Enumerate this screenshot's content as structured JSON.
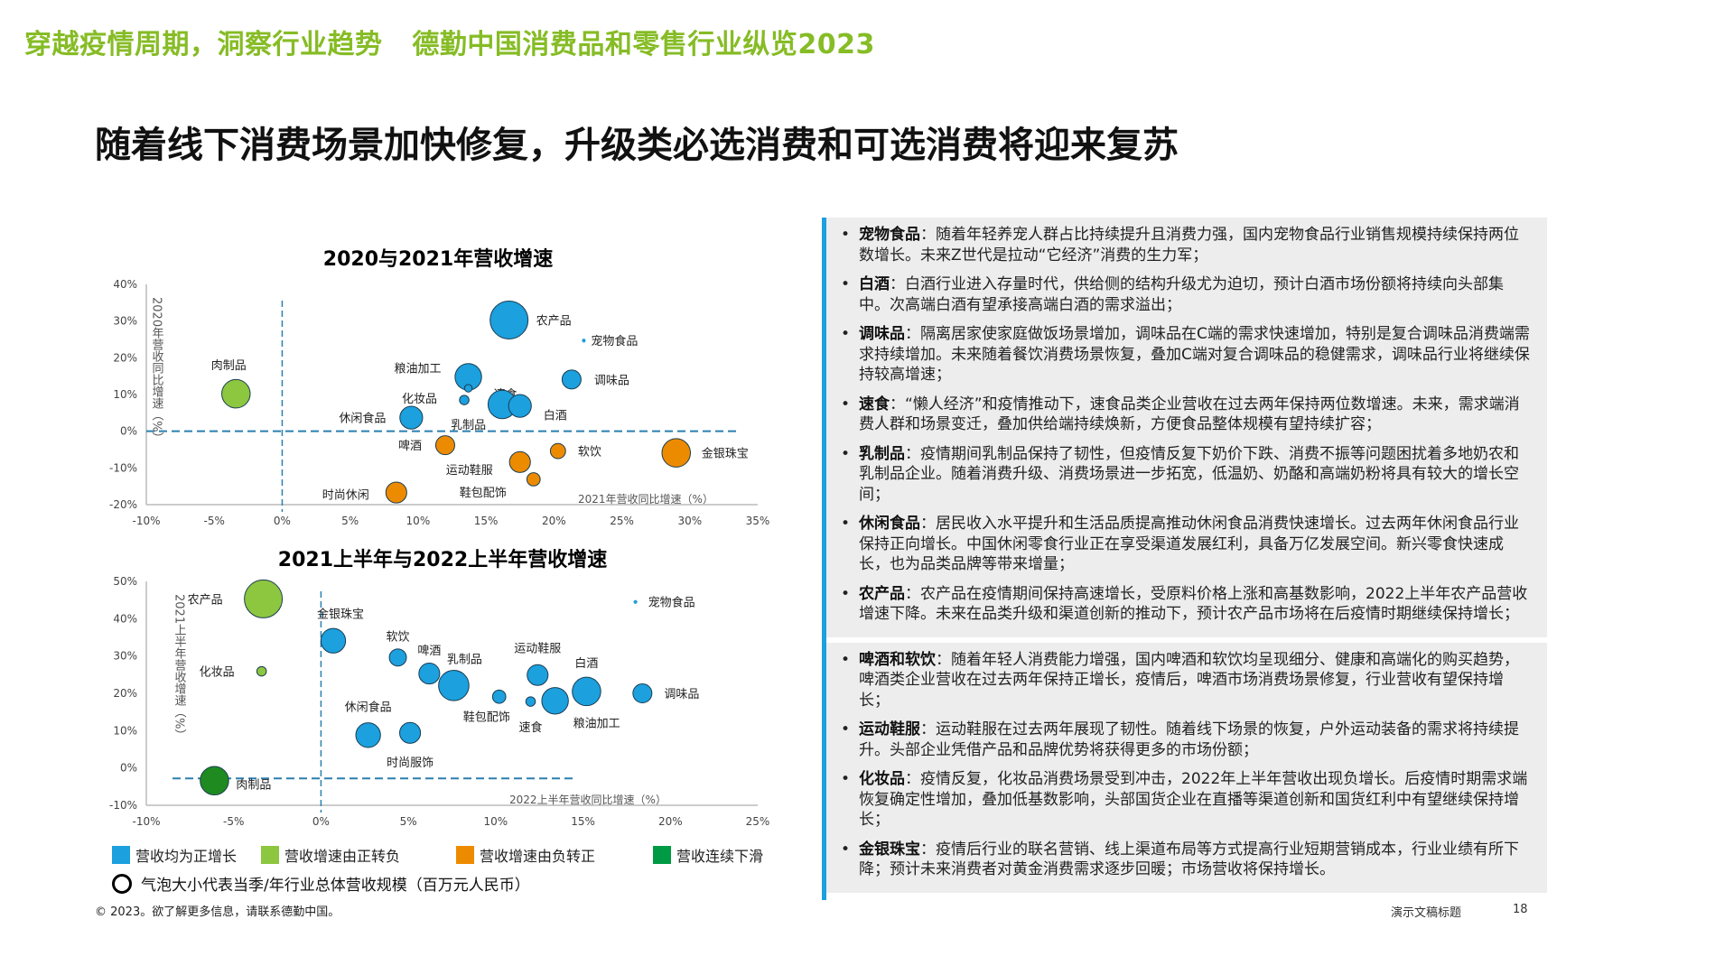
{
  "header": {
    "text": "穿越疫情周期，洞察行业趋势   德勤中国消费品和零售行业纵览2023"
  },
  "title": "随着线下消费场景加快修复，升级类必选消费和可选消费将迎来复苏",
  "colors": {
    "positive": "#1CA0DE",
    "pos_to_neg": "#8DC63F",
    "neg_to_pos": "#ED8B00",
    "decline": "#1F8A1F",
    "legend_decline": "#009A44",
    "accent": "#86BC25"
  },
  "chart_data": [
    {
      "type": "scatter",
      "title": "2020与2021年营收增速",
      "xlabel": "2021年营收同比增速（%）",
      "ylabel": "2020年营收同比增速（%）",
      "xlim": [
        -10,
        35
      ],
      "ylim": [
        -20,
        40
      ],
      "xticks": [
        "-10%",
        "-5%",
        "0%",
        "5%",
        "10%",
        "15%",
        "20%",
        "25%",
        "30%",
        "35%"
      ],
      "yticks": [
        "40%",
        "30%",
        "20%",
        "10%",
        "0%",
        "-10%",
        "-20%"
      ],
      "points": [
        {
          "label": "农产品",
          "x": 16.7,
          "y": 30.3,
          "size": 10,
          "group": "positive"
        },
        {
          "label": "宠物食品",
          "x": 22.2,
          "y": 24.7,
          "size": 1,
          "group": "positive"
        },
        {
          "label": "粮油加工",
          "x": 13.7,
          "y": 14.8,
          "size": 7,
          "group": "positive"
        },
        {
          "label": "速食",
          "x": 13.7,
          "y": 11.7,
          "size": 2,
          "group": "positive"
        },
        {
          "label": "化妆品",
          "x": 13.4,
          "y": 8.5,
          "size": 2.5,
          "group": "positive"
        },
        {
          "label": "调味品",
          "x": 21.3,
          "y": 14.1,
          "size": 5,
          "group": "positive"
        },
        {
          "label": "乳制品",
          "x": 16.2,
          "y": 7.3,
          "size": 7.5,
          "group": "positive"
        },
        {
          "label": "白酒",
          "x": 17.5,
          "y": 6.9,
          "size": 6,
          "group": "positive"
        },
        {
          "label": "肉制品",
          "x": -3.4,
          "y": 10.2,
          "size": 7.5,
          "group": "pos_to_neg"
        },
        {
          "label": "休闲食品",
          "x": 9.5,
          "y": 3.7,
          "size": 6,
          "group": "positive"
        },
        {
          "label": "啤酒",
          "x": 12.0,
          "y": -3.8,
          "size": 5,
          "group": "neg_to_pos"
        },
        {
          "label": "软饮",
          "x": 20.3,
          "y": -5.4,
          "size": 4,
          "group": "neg_to_pos"
        },
        {
          "label": "金银珠宝",
          "x": 29.0,
          "y": -5.9,
          "size": 7.5,
          "group": "neg_to_pos"
        },
        {
          "label": "运动鞋服",
          "x": 17.5,
          "y": -8.4,
          "size": 5.5,
          "group": "neg_to_pos"
        },
        {
          "label": "鞋包配饰",
          "x": 18.5,
          "y": -13.1,
          "size": 3.5,
          "group": "neg_to_pos"
        },
        {
          "label": "时尚休闲",
          "x": 8.4,
          "y": -16.7,
          "size": 5.5,
          "group": "neg_to_pos"
        }
      ],
      "reference_lines": {
        "x": 0,
        "y": 0
      }
    },
    {
      "type": "scatter",
      "title": "2021上半年与2022上半年营收增速",
      "xlabel": "2022上半年营收同比增速（%）",
      "ylabel": "2021上半年营收增速（%）",
      "xlim": [
        -10,
        25
      ],
      "ylim": [
        -10,
        50
      ],
      "xticks": [
        "-10%",
        "-5%",
        "0%",
        "5%",
        "10%",
        "15%",
        "20%",
        "25%"
      ],
      "yticks": [
        "50%",
        "40%",
        "30%",
        "20%",
        "10%",
        "0%",
        "-10%"
      ],
      "points": [
        {
          "label": "农产品",
          "x": -3.3,
          "y": 45.3,
          "size": 10,
          "group": "pos_to_neg"
        },
        {
          "label": "宠物食品",
          "x": 18.0,
          "y": 44.5,
          "size": 1,
          "group": "positive"
        },
        {
          "label": "金银珠宝",
          "x": 0.7,
          "y": 34.1,
          "size": 6.5,
          "group": "positive"
        },
        {
          "label": "软饮",
          "x": 4.4,
          "y": 29.6,
          "size": 4.5,
          "group": "positive"
        },
        {
          "label": "化妆品",
          "x": -3.4,
          "y": 25.9,
          "size": 2.5,
          "group": "pos_to_neg"
        },
        {
          "label": "啤酒",
          "x": 6.2,
          "y": 25.3,
          "size": 5.5,
          "group": "positive"
        },
        {
          "label": "乳制品",
          "x": 7.6,
          "y": 22.1,
          "size": 8,
          "group": "positive"
        },
        {
          "label": "运动鞋服",
          "x": 12.4,
          "y": 24.9,
          "size": 5.5,
          "group": "positive"
        },
        {
          "label": "白酒",
          "x": 15.2,
          "y": 20.5,
          "size": 7.5,
          "group": "positive"
        },
        {
          "label": "调味品",
          "x": 18.4,
          "y": 20.0,
          "size": 5,
          "group": "positive"
        },
        {
          "label": "鞋包配饰",
          "x": 10.2,
          "y": 19.1,
          "size": 3.5,
          "group": "positive"
        },
        {
          "label": "速食",
          "x": 12.0,
          "y": 17.8,
          "size": 2.5,
          "group": "positive"
        },
        {
          "label": "粮油加工",
          "x": 13.4,
          "y": 18.0,
          "size": 7,
          "group": "positive"
        },
        {
          "label": "休闲食品",
          "x": 2.7,
          "y": 8.8,
          "size": 6.5,
          "group": "positive"
        },
        {
          "label": "时尚服饰",
          "x": 5.1,
          "y": 9.4,
          "size": 5.5,
          "group": "positive"
        },
        {
          "label": "肉制品",
          "x": -6.1,
          "y": -3.4,
          "size": 7.5,
          "group": "decline"
        }
      ],
      "reference_lines": {
        "x": 0,
        "y": -2.8
      }
    }
  ],
  "legend": {
    "items": [
      {
        "label": "营收均为正增长",
        "color": "#1CA0DE"
      },
      {
        "label": "营收增速由正转负",
        "color": "#8DC63F"
      },
      {
        "label": "营收增速由负转正",
        "color": "#ED8B00"
      },
      {
        "label": "营收连续下滑",
        "color": "#009A44"
      }
    ],
    "bubble_note": "气泡大小代表当季/年行业总体营收规模（百万元人民币）"
  },
  "panel": {
    "group1": [
      {
        "term": "宠物食品",
        "text": "：随着年轻养宠人群占比持续提升且消费力强，国内宠物食品行业销售规模持续保持两位数增长。未来Z世代是拉动“它经济”消费的生力军；"
      },
      {
        "term": "白酒",
        "text": "：白酒行业进入存量时代，供给侧的结构升级尤为迫切，预计白酒市场份额将持续向头部集中。次高端白酒有望承接高端白酒的需求溢出；"
      },
      {
        "term": "调味品",
        "text": "：隔离居家使家庭做饭场景增加，调味品在C端的需求快速增加，特别是复合调味品消费端需求持续增加。未来随着餐饮消费场景恢复，叠加C端对复合调味品的稳健需求，调味品行业将继续保持较高增速；"
      },
      {
        "term": "速食",
        "text": "：“懒人经济”和疫情推动下，速食品类企业营收在过去两年保持两位数增速。未来，需求端消费人群和场景变迁，叠加供给端持续焕新，方便食品整体规模有望持续扩容；"
      },
      {
        "term": "乳制品",
        "text": "：疫情期间乳制品保持了韧性，但疫情反复下奶价下跌、消费不振等问题困扰着多地奶农和乳制品企业。随着消费升级、消费场景进一步拓宽，低温奶、奶酪和高端奶粉将具有较大的增长空间；"
      },
      {
        "term": "休闲食品",
        "text": "：居民收入水平提升和生活品质提高推动休闲食品消费快速增长。过去两年休闲食品行业保持正向增长。中国休闲零食行业正在享受渠道发展红利，具备万亿发展空间。新兴零食快速成长，也为品类品牌等带来增量；"
      },
      {
        "term": "农产品",
        "text": "：农产品在疫情期间保持高速增长，受原料价格上涨和高基数影响，2022上半年农产品营收增速下降。未来在品类升级和渠道创新的推动下，预计农产品市场将在后疫情时期继续保持增长；"
      }
    ],
    "group2": [
      {
        "term": "啤酒和软饮",
        "text": "：随着年轻人消费能力增强，国内啤酒和软饮均呈现细分、健康和高端化的购买趋势，啤酒类企业营收在过去两年保持正增长，疫情后，啤酒市场消费场景修复，行业营收有望保持增长；"
      },
      {
        "term": "运动鞋服",
        "text": "：运动鞋服在过去两年展现了韧性。随着线下场景的恢复，户外运动装备的需求将持续提升。头部企业凭借产品和品牌优势将获得更多的市场份额；"
      },
      {
        "term": "化妆品",
        "text": "：疫情反复，化妆品消费场景受到冲击，2022年上半年营收出现负增长。后疫情时期需求端恢复确定性增加，叠加低基数影响，头部国货企业在直播等渠道创新和国货红利中有望继续保持增长；"
      },
      {
        "term": "金银珠宝",
        "text": "：疫情后行业的联名营销、线上渠道布局等方式提高行业短期营销成本，行业业绩有所下降；预计未来消费者对黄金消费需求逐步回暖；市场营收将保持增长。"
      }
    ]
  },
  "footer": {
    "copyright": "© 2023。欲了解更多信息，请联系德勤中国。",
    "presentation_title": "演示文稿标题",
    "page": "18"
  }
}
